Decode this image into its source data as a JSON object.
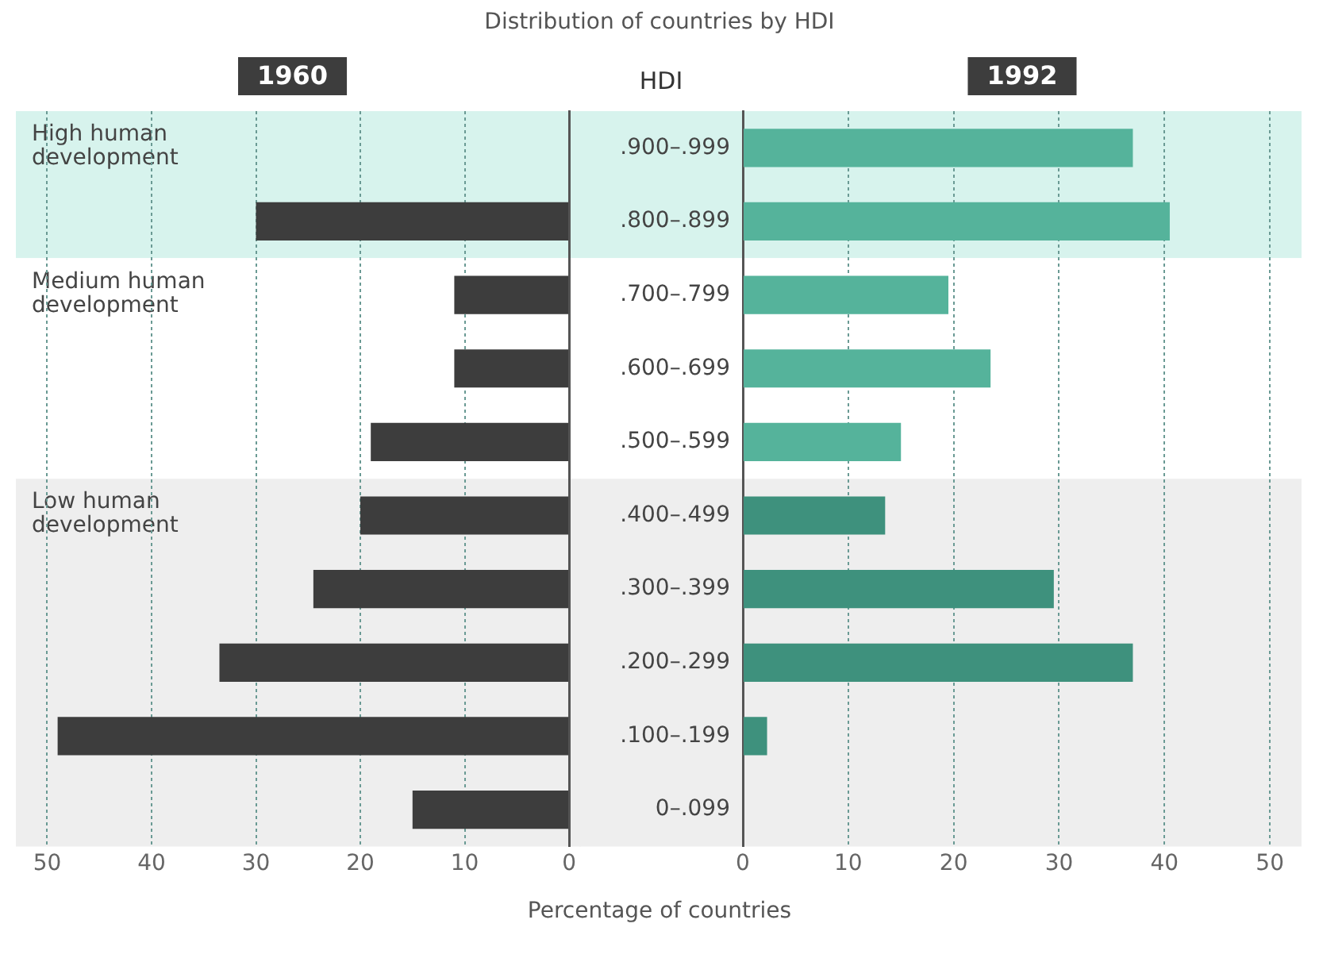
{
  "chart_data": [
    {
      "type": "bar",
      "orientation": "horizontal",
      "title": "1960",
      "subtitle": "Distribution of countries by HDI",
      "xlabel": "Percentage of countries",
      "categories": [
        ".900–.999",
        ".800–.899",
        ".700–.799",
        ".600–.699",
        ".500–.599",
        ".400–.499",
        ".300–.399",
        ".200–.299",
        ".100–.199",
        "0–.099"
      ],
      "values": [
        0,
        30,
        11,
        11,
        19,
        20,
        24.5,
        33.5,
        49,
        15
      ],
      "color": "#3d3d3d",
      "xlim": [
        53,
        0
      ],
      "xticks": [
        50,
        40,
        30,
        20,
        10,
        0
      ],
      "grid": "x",
      "tick_labels": "x",
      "bands": [
        {
          "axis": "y",
          "from": ".900–.999",
          "to": ".800–.899",
          "label": "High human development",
          "color": "#d7f3ed"
        },
        {
          "axis": "y",
          "from": ".700–.799",
          "to": ".500–.599",
          "label": "Medium human development",
          "color": "#ffffff"
        },
        {
          "axis": "y",
          "from": ".400–.499",
          "to": "0–.099",
          "label": "Low human development",
          "color": "#eeeeee"
        }
      ]
    },
    {
      "type": "bar",
      "orientation": "horizontal",
      "title": "1992",
      "ylabel": "HDI",
      "categories": [
        ".900–.999",
        ".800–.899",
        ".700–.799",
        ".600–.699",
        ".500–.599",
        ".400–.499",
        ".300–.399",
        ".200–.299",
        ".100–.199",
        "0–.099"
      ],
      "values": [
        37,
        40.5,
        19.5,
        23.5,
        15,
        13.5,
        29.5,
        37,
        2.3,
        0
      ],
      "colors": [
        "#55b39b",
        "#55b39b",
        "#55b39b",
        "#55b39b",
        "#55b39b",
        "#3e917d",
        "#3e917d",
        "#3e917d",
        "#3e917d",
        "#3e917d"
      ],
      "xlim": [
        0,
        53
      ],
      "xticks": [
        0,
        10,
        20,
        30,
        40,
        50
      ],
      "grid": "x",
      "bands": [
        {
          "axis": "y",
          "from": ".900–.999",
          "to": ".800–.899",
          "color": "#d7f3ed"
        },
        {
          "axis": "y",
          "from": ".700–.799",
          "to": ".500–.599",
          "color": "#ffffff"
        },
        {
          "axis": "y",
          "from": ".400–.499",
          "to": "0–.099",
          "color": "#eeeeee"
        }
      ]
    }
  ]
}
